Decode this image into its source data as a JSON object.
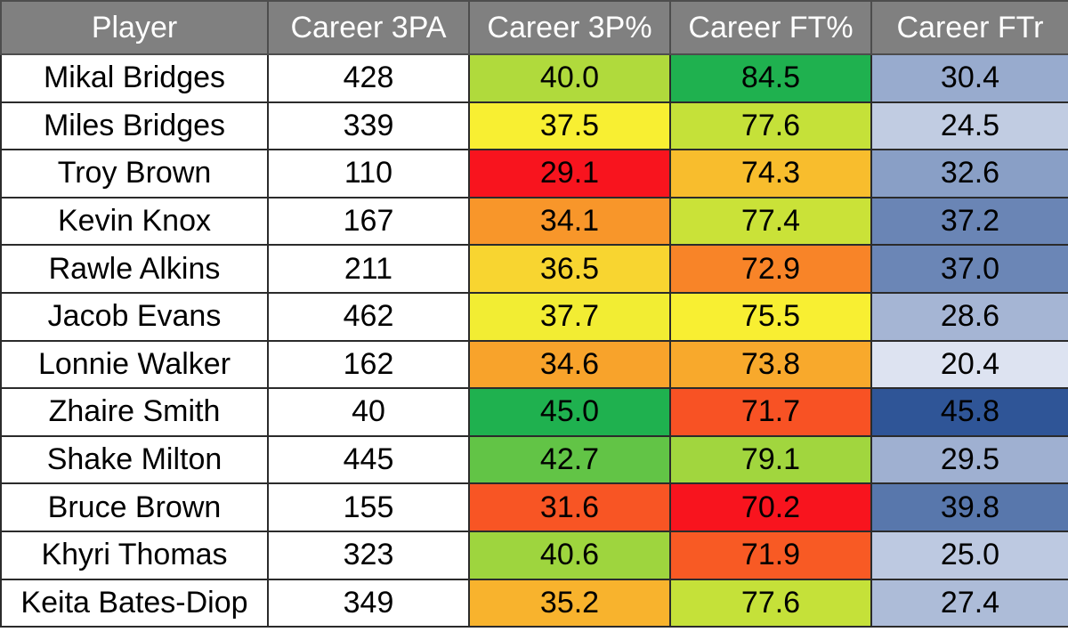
{
  "chart_data": {
    "type": "table",
    "columns": [
      "Player",
      "Career 3PA",
      "Career 3P%",
      "Career FT%",
      "Career FTr"
    ],
    "rows": [
      {
        "player": "Mikal Bridges",
        "tpa": "428",
        "tpp": "40.0",
        "ftp": "84.5",
        "ftr": "30.4"
      },
      {
        "player": "Miles Bridges",
        "tpa": "339",
        "tpp": "37.5",
        "ftp": "77.6",
        "ftr": "24.5"
      },
      {
        "player": "Troy Brown",
        "tpa": "110",
        "tpp": "29.1",
        "ftp": "74.3",
        "ftr": "32.6"
      },
      {
        "player": "Kevin Knox",
        "tpa": "167",
        "tpp": "34.1",
        "ftp": "77.4",
        "ftr": "37.2"
      },
      {
        "player": "Rawle Alkins",
        "tpa": "211",
        "tpp": "36.5",
        "ftp": "72.9",
        "ftr": "37.0"
      },
      {
        "player": "Jacob Evans",
        "tpa": "462",
        "tpp": "37.7",
        "ftp": "75.5",
        "ftr": "28.6"
      },
      {
        "player": "Lonnie Walker",
        "tpa": "162",
        "tpp": "34.6",
        "ftp": "73.8",
        "ftr": "20.4"
      },
      {
        "player": "Zhaire Smith",
        "tpa": "40",
        "tpp": "45.0",
        "ftp": "71.7",
        "ftr": "45.8"
      },
      {
        "player": "Shake Milton",
        "tpa": "445",
        "tpp": "42.7",
        "ftp": "79.1",
        "ftr": "29.5"
      },
      {
        "player": "Bruce Brown",
        "tpa": "155",
        "tpp": "31.6",
        "ftp": "70.2",
        "ftr": "39.8"
      },
      {
        "player": "Khyri Thomas",
        "tpa": "323",
        "tpp": "40.6",
        "ftp": "71.9",
        "ftr": "25.0"
      },
      {
        "player": "Keita Bates-Diop",
        "tpa": "349",
        "tpp": "35.2",
        "ftp": "77.6",
        "ftr": "27.4"
      }
    ],
    "colors": {
      "header_bg": "#808080",
      "header_text": "#ffffff",
      "scale_low": "#f8141e",
      "scale_mid": "#f8ef32",
      "scale_high": "#1fb14f",
      "blue_low": "#dde3f1",
      "blue_high": "#2f5597"
    }
  }
}
